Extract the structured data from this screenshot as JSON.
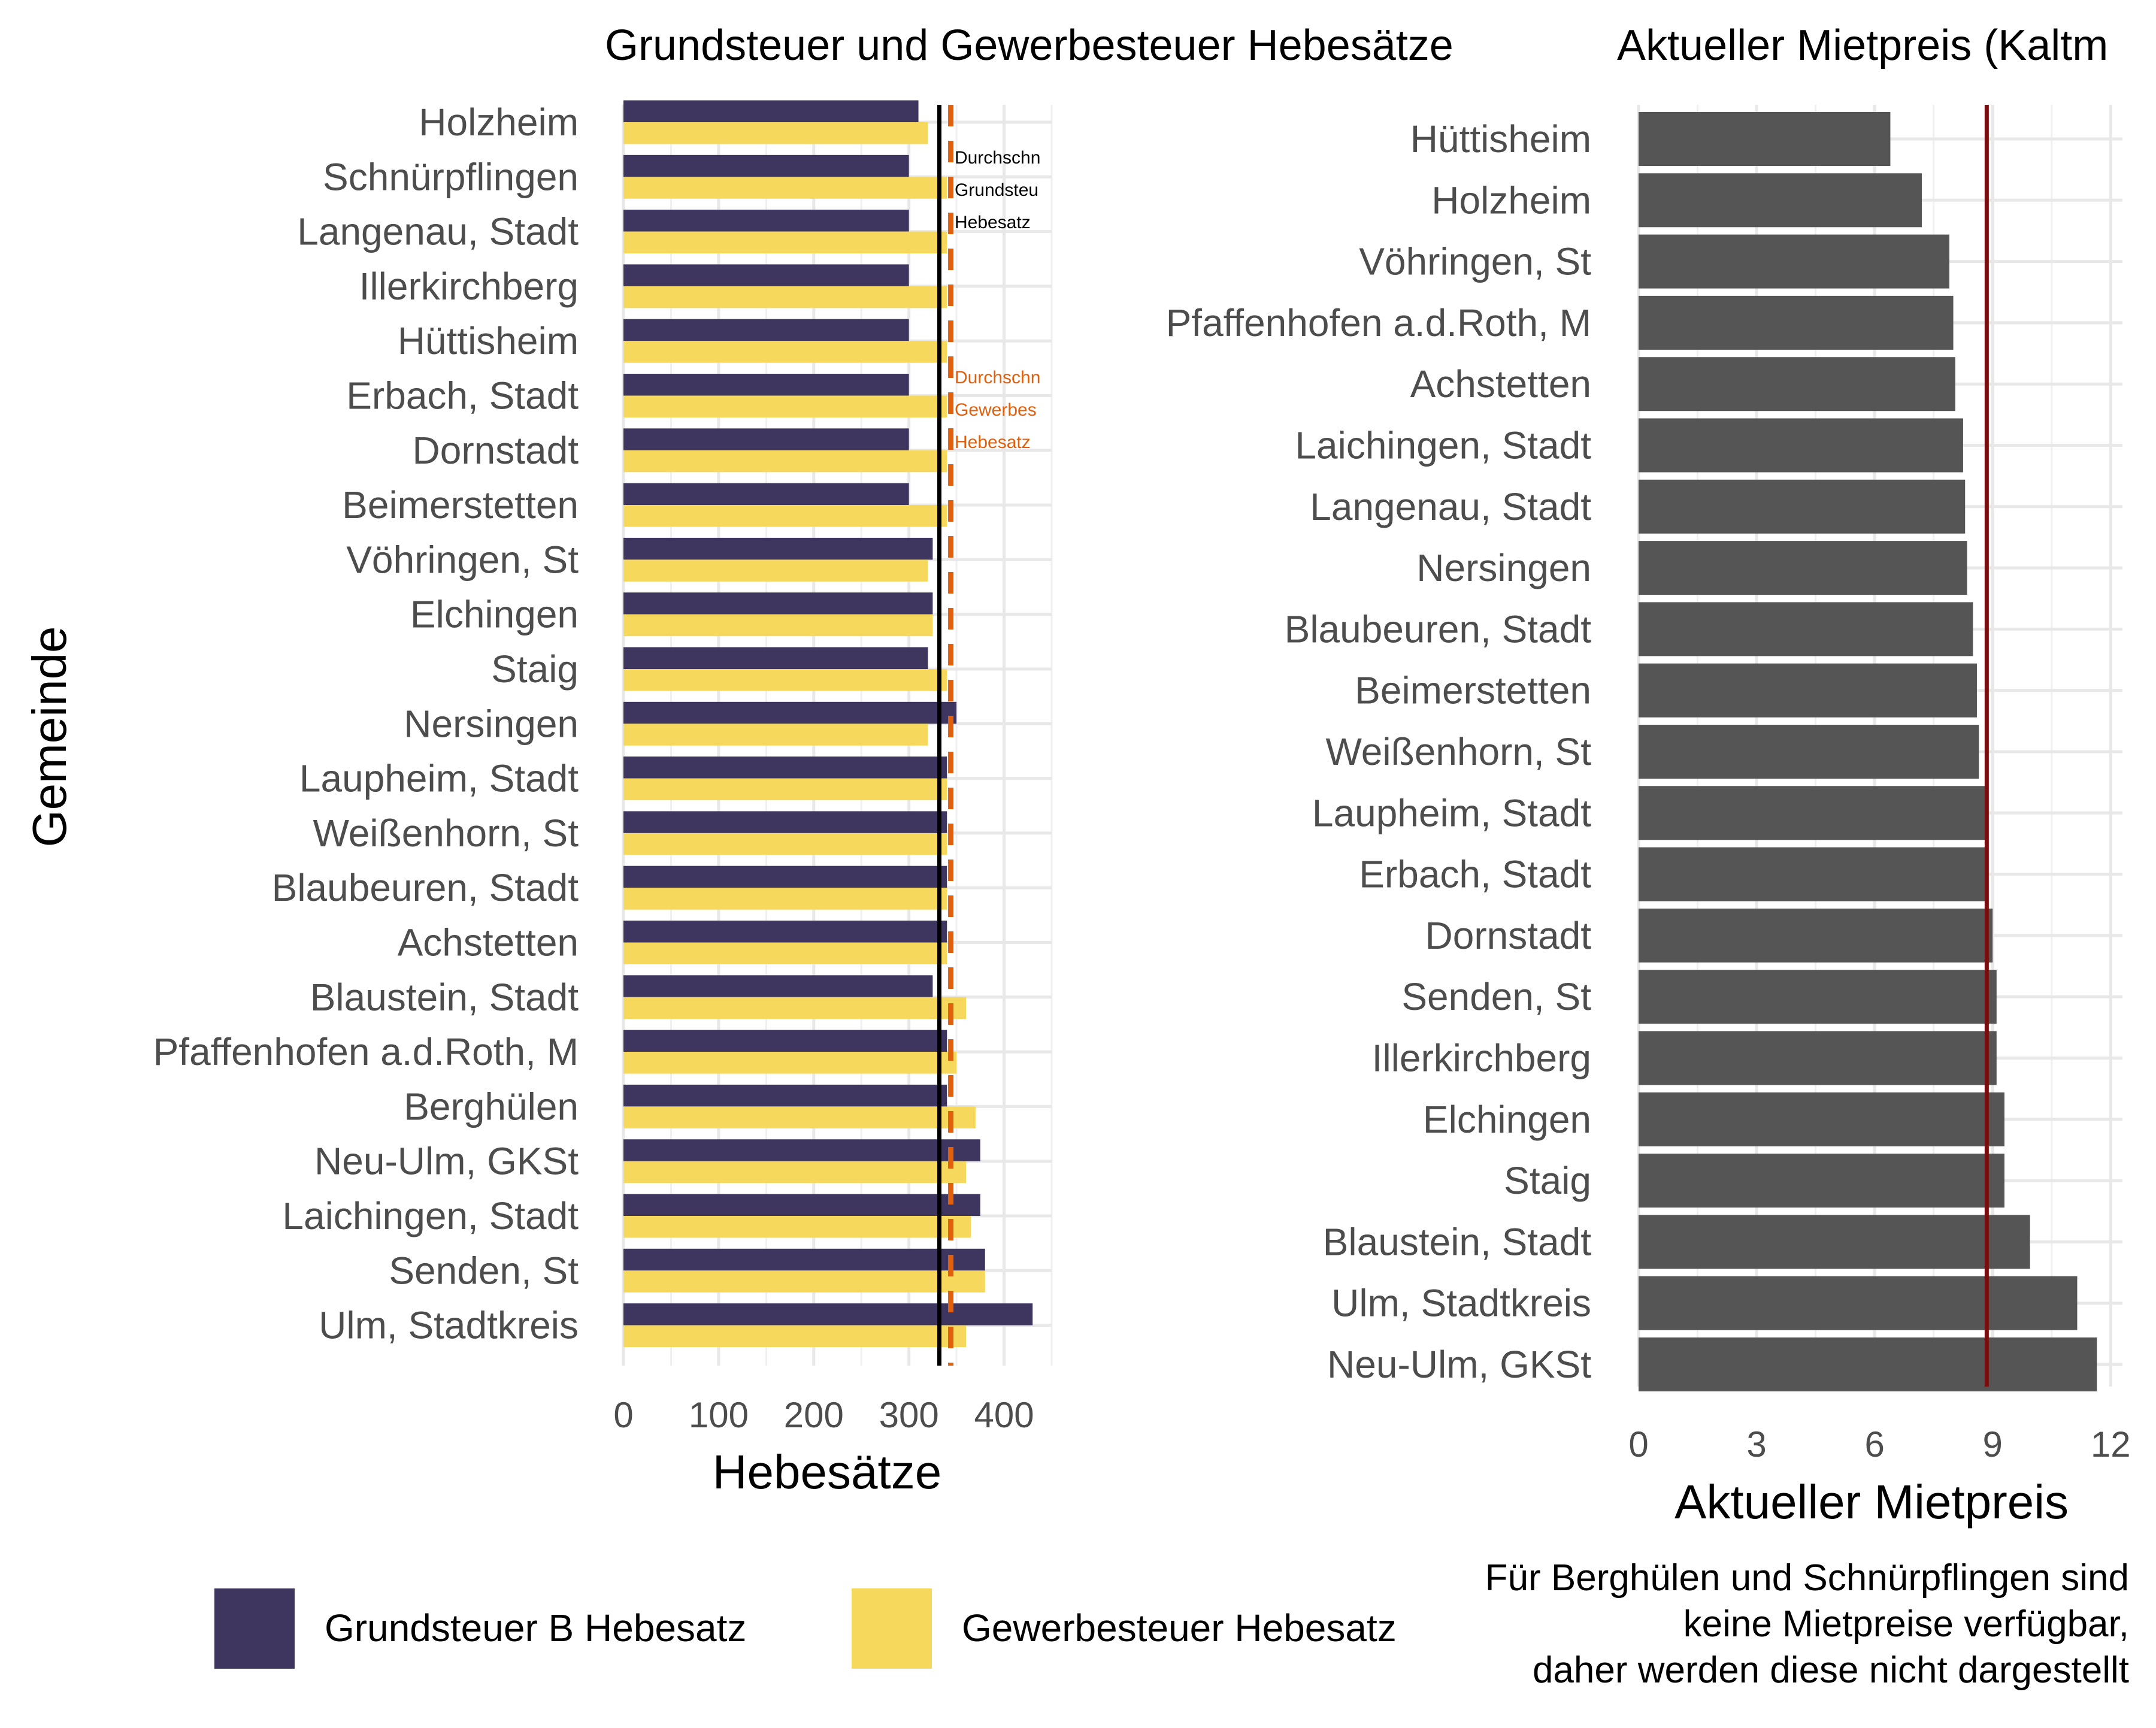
{
  "chart_data": [
    {
      "type": "bar",
      "orientation": "horizontal",
      "title": "Grundsteuer und Gewerbesteuer Hebesätze",
      "xlabel": "Hebesätze",
      "ylabel": "Gemeinde",
      "xlim": [
        0,
        450
      ],
      "x_ticks": [
        "0",
        "100",
        "200",
        "300",
        "400"
      ],
      "grid": true,
      "categories": [
        "Holzheim",
        "Schnürpflingen",
        "Langenau, Stadt",
        "Illerkirchberg",
        "Hüttisheim",
        "Erbach, Stadt",
        "Dornstadt",
        "Beimerstetten",
        "Vöhringen, St",
        "Elchingen",
        "Staig",
        "Nersingen",
        "Laupheim, Stadt",
        "Weißenhorn, St",
        "Blaubeuren, Stadt",
        "Achstetten",
        "Blaustein, Stadt",
        "Pfaffenhofen a.d.Roth, M",
        "Berghülen",
        "Neu-Ulm, GKSt",
        "Laichingen, Stadt",
        "Senden, St",
        "Ulm, Stadtkreis"
      ],
      "series": [
        {
          "name": "Grundsteuer B Hebesatz",
          "color": "#3f3660",
          "values": [
            310,
            300,
            300,
            300,
            300,
            300,
            300,
            300,
            325,
            325,
            320,
            350,
            340,
            340,
            340,
            340,
            325,
            340,
            340,
            375,
            375,
            380,
            430
          ]
        },
        {
          "name": "Gewerbesteuer Hebesatz",
          "color": "#f6d95c",
          "values": [
            320,
            340,
            340,
            340,
            340,
            340,
            340,
            340,
            320,
            325,
            340,
            320,
            340,
            340,
            340,
            340,
            360,
            350,
            370,
            360,
            365,
            380,
            360
          ]
        }
      ],
      "reference_lines": [
        {
          "value": 332,
          "style": "solid",
          "color": "#000000",
          "label_lines": [
            "Durchschn",
            "Grundsteu",
            "Hebesatz"
          ]
        },
        {
          "value": 344,
          "style": "dashed",
          "color": "#e0600e",
          "label_lines": [
            "Durchschn",
            "Gewerbes",
            "Hebesatz"
          ]
        }
      ],
      "legend": {
        "position": "bottom",
        "entries": [
          "Grundsteuer B Hebesatz",
          "Gewerbesteuer Hebesatz"
        ]
      }
    },
    {
      "type": "bar",
      "orientation": "horizontal",
      "title": "Aktueller Mietpreis (Kaltm",
      "xlabel": "Aktueller Mietpreis",
      "ylabel": "",
      "xlim": [
        0,
        12.3
      ],
      "x_ticks": [
        "0",
        "3",
        "6",
        "9",
        "12"
      ],
      "grid": true,
      "bar_color": "#555555",
      "categories": [
        "Hüttisheim",
        "Holzheim",
        "Vöhringen, St",
        "Pfaffenhofen a.d.Roth, M",
        "Achstetten",
        "Laichingen, Stadt",
        "Langenau, Stadt",
        "Nersingen",
        "Blaubeuren, Stadt",
        "Beimerstetten",
        "Weißenhorn, St",
        "Laupheim, Stadt",
        "Erbach, Stadt",
        "Dornstadt",
        "Senden, St",
        "Illerkirchberg",
        "Elchingen",
        "Staig",
        "Blaustein, Stadt",
        "Ulm, Stadtkreis",
        "Neu-Ulm, GKSt"
      ],
      "values": [
        6.4,
        7.2,
        7.9,
        8.0,
        8.05,
        8.25,
        8.3,
        8.35,
        8.5,
        8.6,
        8.65,
        8.8,
        8.8,
        9.0,
        9.1,
        9.1,
        9.3,
        9.3,
        9.95,
        11.15,
        11.65
      ],
      "reference_lines": [
        {
          "value": 8.85,
          "style": "solid",
          "color": "#7a0e0e"
        }
      ]
    }
  ],
  "note": "Für Berghülen und Schnürpflingen sind\nkeine Mietpreise verfügbar,\ndaher werden diese nicht dargestellt"
}
